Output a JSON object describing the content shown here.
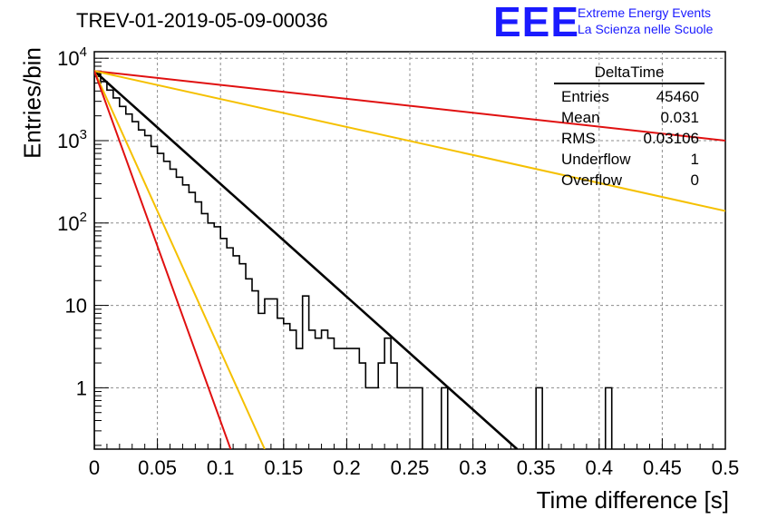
{
  "header": {
    "title": "TREV-01-2019-05-09-00036",
    "logo_text": "EEE",
    "logo_line1": "Extreme Energy Events",
    "logo_line2": "La Scienza nelle Scuole"
  },
  "stats_box": {
    "title": "DeltaTime",
    "rows": [
      {
        "label": "Entries",
        "value": "45460"
      },
      {
        "label": "Mean",
        "value": "0.031"
      },
      {
        "label": "RMS",
        "value": "0.03106"
      },
      {
        "label": "Underflow",
        "value": "1"
      },
      {
        "label": "Overflow",
        "value": "0"
      }
    ]
  },
  "colors": {
    "histogram": "#000000",
    "fit": "#000000",
    "red": "#e01010",
    "yellow": "#f5c000",
    "grid": "#8c8c8c"
  },
  "chart_data": {
    "type": "line",
    "xlabel": "Time difference [s]",
    "ylabel": "Entries/bin",
    "xlim": [
      0,
      0.5
    ],
    "ylim": [
      0.18,
      12000
    ],
    "y_scale": "log",
    "grid": true,
    "x_ticks": [
      "0",
      "0.05",
      "0.1",
      "0.15",
      "0.2",
      "0.25",
      "0.3",
      "0.35",
      "0.4",
      "0.45",
      "0.5"
    ],
    "y_ticks": [
      {
        "value": 1,
        "label": "1"
      },
      {
        "value": 10,
        "label": "10"
      },
      {
        "value": 100,
        "label": "10^2"
      },
      {
        "value": 1000,
        "label": "10^3"
      },
      {
        "value": 10000,
        "label": "10^4"
      }
    ],
    "histogram": {
      "bin_width": 0.005,
      "x_start": 0,
      "values": [
        6500,
        5200,
        4100,
        3300,
        2600,
        2100,
        1700,
        1350,
        1150,
        850,
        700,
        560,
        450,
        360,
        290,
        235,
        180,
        130,
        100,
        90,
        65,
        50,
        40,
        32,
        21,
        15,
        8,
        12,
        12,
        7,
        6,
        5,
        3,
        13,
        5,
        4,
        5,
        4,
        3,
        3,
        3,
        3,
        2,
        1,
        1,
        2,
        4,
        2,
        1,
        1,
        1,
        1,
        0,
        0,
        0,
        1,
        0,
        0,
        0,
        0,
        0,
        0,
        0,
        0,
        0,
        0,
        0,
        0,
        0,
        0,
        1,
        0,
        0,
        0,
        0,
        0,
        0,
        0,
        0,
        0,
        0,
        1,
        0
      ]
    },
    "series": [
      {
        "color": "black",
        "points": [
          [
            0,
            7000
          ],
          [
            0.335,
            0.18
          ]
        ]
      },
      {
        "color": "red",
        "points": [
          [
            0,
            7000
          ],
          [
            0.5,
            1000
          ]
        ]
      },
      {
        "color": "yellow",
        "points": [
          [
            0,
            7000
          ],
          [
            0.5,
            140
          ]
        ]
      },
      {
        "color": "yellow",
        "points": [
          [
            0,
            7000
          ],
          [
            0.135,
            0.18
          ]
        ]
      },
      {
        "color": "red",
        "points": [
          [
            0,
            7000
          ],
          [
            0.108,
            0.18
          ]
        ]
      }
    ]
  }
}
